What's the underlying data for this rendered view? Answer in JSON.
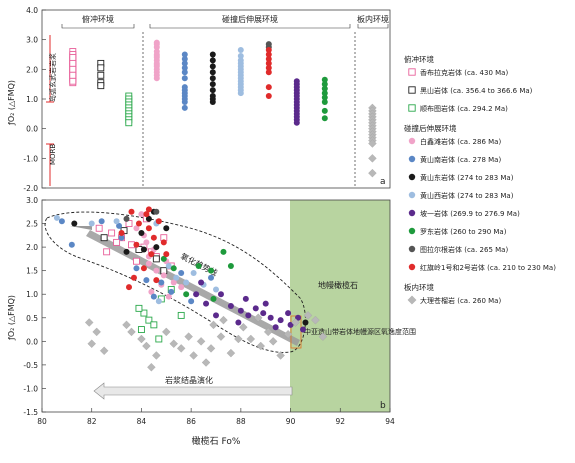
{
  "chart_data": [
    {
      "panel": "a",
      "type": "scatter",
      "ylabel": "ƒO₂ (△FMQ)",
      "ylim": [
        -2,
        4
      ],
      "yticks": [
        "-2.0",
        "-1.0",
        "0.0",
        "1.0",
        "2.0",
        "3.0",
        "4.0"
      ],
      "section_titles": [
        "俯冲环境",
        "碰撞后伸展环境",
        "板内环境"
      ],
      "arc_label": "岛弧玄武岩岩浆",
      "morb_label": "MORB",
      "series": [
        {
          "name": "香布拉克岩体 (ca. 430 Ma)",
          "marker": "square-open",
          "color": "#e8609a",
          "x": 0.6,
          "values": [
            2.6,
            2.45,
            2.35,
            2.25,
            2.15,
            2.05,
            1.95,
            1.85,
            1.75,
            1.65,
            1.55,
            2.5,
            2.3,
            2.1,
            1.9,
            1.7,
            1.6,
            2.4,
            2.2,
            2.0,
            1.8
          ]
        },
        {
          "name": "黑山岩体 (ca. 356.4 to 366.6 Ma)",
          "marker": "square-open",
          "color": "#222222",
          "x": 1.6,
          "values": [
            2.2,
            2.05,
            1.8,
            1.55,
            1.45
          ]
        },
        {
          "name": "顺布图岩体 (ca. 294.2 Ma)",
          "marker": "square-open",
          "color": "#2aa84a",
          "x": 2.6,
          "values": [
            1.1,
            1.0,
            0.9,
            0.8,
            0.7,
            0.6,
            0.5,
            0.4,
            0.3,
            0.2
          ]
        },
        {
          "name": "白鑫滩岩体 (ca. 286 Ma)",
          "marker": "circle",
          "color": "#f0a3c8",
          "x": 3.6,
          "values": [
            2.9,
            2.75,
            2.6,
            2.5,
            2.4,
            2.3,
            2.2,
            2.1,
            2.0,
            1.9,
            1.8,
            1.7,
            2.85,
            2.45,
            2.15
          ]
        },
        {
          "name": "黄山南岩体 (ca. 278 Ma)",
          "marker": "circle",
          "color": "#5b87c5",
          "x": 4.6,
          "values": [
            2.5,
            2.35,
            2.2,
            2.05,
            1.9,
            1.7,
            1.4,
            1.3,
            1.2,
            1.1,
            1.0,
            0.9,
            0.7
          ]
        },
        {
          "name": "黄山东岩体 (274 to 283 Ma)",
          "marker": "circle",
          "color": "#1a1a1a",
          "x": 5.6,
          "values": [
            2.5,
            2.3,
            2.1,
            1.9,
            1.7,
            1.5,
            1.3,
            1.1,
            1.0,
            0.9
          ]
        },
        {
          "name": "黄山西岩体 (274 to 283 Ma)",
          "marker": "circle",
          "color": "#9ebde0",
          "x": 6.6,
          "values": [
            2.65,
            2.45,
            2.3,
            2.2,
            2.1,
            2.0,
            1.9,
            1.8,
            1.7,
            1.6,
            1.5,
            1.4,
            1.3,
            1.2
          ]
        },
        {
          "name": "坡一岩体 (269.9 to 276.9 Ma)",
          "marker": "circle",
          "color": "#5b2a8c",
          "x": 8.6,
          "values": [
            1.6,
            1.5,
            1.4,
            1.3,
            1.2,
            1.1,
            1.0,
            0.9,
            0.8,
            0.7,
            0.6,
            0.5,
            0.4,
            0.3,
            0.2
          ]
        },
        {
          "name": "罗东岩体 (260 to 290 Ma)",
          "marker": "circle",
          "color": "#1e9a3c",
          "x": 9.6,
          "values": [
            1.65,
            1.5,
            1.35,
            1.2,
            1.05,
            0.9,
            0.6,
            0.35
          ]
        },
        {
          "name": "图拉尔根岩体 (ca. 265 Ma)",
          "marker": "circle",
          "color": "#555555",
          "x": 7.6,
          "values": [
            2.85,
            2.75
          ]
        },
        {
          "name": "红旗岭1号和2号岩体 (ca. 210 to 230 Ma)",
          "marker": "circle",
          "color": "#e02b2b",
          "x": 7.6,
          "values": [
            2.65,
            2.5,
            2.35,
            2.2,
            2.05,
            1.9,
            1.4,
            1.1
          ]
        },
        {
          "name": "大理苍榴岩 (ca. 260 Ma)",
          "marker": "diamond",
          "color": "#b8b8b8",
          "x": 11.3,
          "values": [
            0.7,
            0.6,
            0.5,
            0.4,
            0.3,
            0.2,
            0.1,
            0.0,
            -0.1,
            -0.2,
            -0.3,
            -0.4,
            -0.5,
            -1.0,
            -1.5
          ]
        }
      ]
    },
    {
      "panel": "b",
      "type": "scatter",
      "xlabel": "橄榄石 Fo%",
      "ylabel": "ƒO₂ (△FMQ)",
      "xlim": [
        80,
        94
      ],
      "ylim": [
        -1.5,
        3.0
      ],
      "xticks": [
        "80",
        "82",
        "84",
        "86",
        "88",
        "90",
        "92",
        "94"
      ],
      "yticks": [
        "-1.5",
        "-1.0",
        "-0.5",
        "0.0",
        "0.5",
        "1.0",
        "1.5",
        "2.0",
        "2.5",
        "3.0"
      ],
      "annotations": [
        "氧化趋势线",
        "地幔橄榄石",
        "中亚造山带岩体地幔源区氧逸度范围",
        "岩浆结晶演化"
      ],
      "series": [
        {
          "name": "香布拉克岩体 (ca. 430 Ma)",
          "marker": "square-open",
          "color": "#e8609a",
          "points": [
            [
              82.3,
              2.4
            ],
            [
              82.8,
              2.3
            ],
            [
              83.2,
              2.2
            ],
            [
              83.6,
              2.05
            ],
            [
              84.1,
              2.0
            ],
            [
              84.4,
              1.9
            ],
            [
              83.5,
              2.5
            ],
            [
              83.0,
              2.1
            ],
            [
              84.6,
              1.8
            ],
            [
              83.8,
              1.7
            ],
            [
              82.6,
              1.9
            ],
            [
              84.9,
              2.2
            ],
            [
              85.2,
              1.6
            ],
            [
              84.2,
              2.6
            ]
          ]
        },
        {
          "name": "黑山岩体 (ca. 356.4 to 366.6 Ma)",
          "marker": "square-open",
          "color": "#222222",
          "points": [
            [
              82.5,
              2.2
            ],
            [
              83.3,
              2.35
            ],
            [
              83.9,
              1.95
            ],
            [
              84.6,
              1.75
            ],
            [
              84.9,
              1.5
            ]
          ]
        },
        {
          "name": "顺布图岩体 (ca. 294.2 Ma)",
          "marker": "square-open",
          "color": "#2aa84a",
          "points": [
            [
              84.1,
              0.6
            ],
            [
              84.3,
              0.45
            ],
            [
              84.5,
              0.35
            ],
            [
              84.0,
              0.25
            ],
            [
              84.8,
              0.9
            ],
            [
              85.2,
              1.1
            ],
            [
              85.6,
              0.55
            ],
            [
              84.7,
              0.05
            ],
            [
              83.9,
              0.7
            ]
          ]
        },
        {
          "name": "白鑫滩岩体 (ca. 286 Ma)",
          "marker": "circle",
          "color": "#f0a3c8",
          "points": [
            [
              83.8,
              2.4
            ],
            [
              84.1,
              2.25
            ],
            [
              84.2,
              2.1
            ],
            [
              84.5,
              1.95
            ],
            [
              84.3,
              1.65
            ],
            [
              84.6,
              1.5
            ],
            [
              84.9,
              1.4
            ],
            [
              84.8,
              1.2
            ],
            [
              85.3,
              1.25
            ],
            [
              85.6,
              1.15
            ],
            [
              84.4,
              1.05
            ],
            [
              85.1,
              0.95
            ],
            [
              84.3,
              1.8
            ],
            [
              85.0,
              1.7
            ],
            [
              84.0,
              2.7
            ]
          ]
        },
        {
          "name": "黄山南岩体 (ca. 278 Ma)",
          "marker": "circle",
          "color": "#5b87c5",
          "points": [
            [
              80.8,
              2.55
            ],
            [
              81.2,
              2.05
            ],
            [
              82.4,
              2.55
            ],
            [
              83.1,
              2.45
            ],
            [
              83.2,
              2.2
            ],
            [
              83.8,
              1.55
            ],
            [
              84.2,
              1.3
            ],
            [
              84.8,
              1.25
            ],
            [
              85.2,
              1.05
            ],
            [
              84.5,
              0.95
            ],
            [
              85.6,
              1.45
            ],
            [
              86.8,
              1.35
            ],
            [
              86.0,
              0.85
            ]
          ]
        },
        {
          "name": "黄山东岩体 (274 to 283 Ma)",
          "marker": "circle",
          "color": "#1a1a1a",
          "points": [
            [
              81.3,
              2.5
            ],
            [
              84.5,
              2.75
            ],
            [
              84.3,
              2.6
            ],
            [
              84.0,
              2.3
            ],
            [
              85.0,
              2.4
            ],
            [
              83.4,
              1.9
            ],
            [
              84.1,
              1.95
            ],
            [
              84.6,
              2.0
            ],
            [
              90.6,
              0.4
            ]
          ]
        },
        {
          "name": "黄山西岩体 (274 to 283 Ma)",
          "marker": "circle",
          "color": "#9ebde0",
          "points": [
            [
              80.6,
              2.62
            ],
            [
              82.0,
              2.5
            ],
            [
              83.0,
              2.55
            ],
            [
              84.6,
              2.5
            ],
            [
              85.1,
              1.6
            ],
            [
              85.4,
              1.35
            ],
            [
              85.8,
              1.25
            ],
            [
              86.1,
              1.45
            ],
            [
              86.5,
              1.2
            ],
            [
              87.0,
              1.1
            ],
            [
              84.7,
              0.85
            ]
          ]
        },
        {
          "name": "坡一岩体 (269.9 to 276.9 Ma)",
          "marker": "circle",
          "color": "#5b2a8c",
          "points": [
            [
              86.4,
              1.25
            ],
            [
              87.2,
              1.0
            ],
            [
              87.6,
              0.75
            ],
            [
              88.0,
              0.65
            ],
            [
              88.3,
              0.55
            ],
            [
              88.6,
              0.7
            ],
            [
              88.9,
              0.6
            ],
            [
              89.2,
              0.5
            ],
            [
              89.6,
              0.45
            ],
            [
              89.9,
              0.6
            ],
            [
              90.0,
              0.35
            ],
            [
              90.3,
              0.5
            ],
            [
              89.4,
              0.3
            ],
            [
              88.2,
              0.9
            ],
            [
              87.9,
              0.4
            ],
            [
              86.6,
              0.8
            ],
            [
              87.0,
              0.55
            ],
            [
              86.2,
              1.0
            ],
            [
              89.0,
              0.8
            ],
            [
              90.5,
              0.25
            ]
          ]
        },
        {
          "name": "罗东岩体 (260 to 290 Ma)",
          "marker": "circle",
          "color": "#1e9a3c",
          "points": [
            [
              84.9,
              1.75
            ],
            [
              85.3,
              1.55
            ],
            [
              86.3,
              1.6
            ],
            [
              86.8,
              1.5
            ],
            [
              87.3,
              1.9
            ],
            [
              87.6,
              1.6
            ],
            [
              86.9,
              0.9
            ],
            [
              85.8,
              1.0
            ]
          ]
        },
        {
          "name": "图拉尔根岩体 (ca. 265 Ma)",
          "marker": "circle",
          "color": "#555555",
          "points": [
            [
              84.6,
              2.75
            ],
            [
              83.4,
              2.6
            ]
          ]
        },
        {
          "name": "红旗岭1号和2号岩体 (ca. 210 to 230 Ma)",
          "marker": "circle",
          "color": "#e02b2b",
          "points": [
            [
              83.6,
              2.75
            ],
            [
              84.2,
              2.7
            ],
            [
              83.9,
              2.5
            ],
            [
              84.3,
              2.4
            ],
            [
              84.7,
              2.55
            ],
            [
              84.9,
              2.1
            ],
            [
              83.8,
              2.05
            ],
            [
              84.4,
              1.85
            ],
            [
              84.1,
              1.55
            ],
            [
              83.7,
              1.35
            ],
            [
              83.5,
              1.15
            ],
            [
              84.6,
              1.3
            ],
            [
              83.2,
              2.3
            ],
            [
              84.3,
              2.8
            ],
            [
              84.5,
              2.2
            ],
            [
              85.0,
              1.85
            ]
          ]
        },
        {
          "name": "大理苍榴岩 (ca. 260 Ma)",
          "marker": "diamond",
          "color": "#b8b8b8",
          "points": [
            [
              81.9,
              0.4
            ],
            [
              82.2,
              0.2
            ],
            [
              82.0,
              -0.05
            ],
            [
              82.5,
              -0.2
            ],
            [
              83.4,
              0.35
            ],
            [
              83.6,
              0.2
            ],
            [
              84.0,
              0.05
            ],
            [
              84.2,
              -0.1
            ],
            [
              84.6,
              -0.3
            ],
            [
              84.4,
              -0.55
            ],
            [
              85.0,
              0.2
            ],
            [
              85.3,
              -0.05
            ],
            [
              85.6,
              -0.15
            ],
            [
              85.9,
              0.1
            ],
            [
              86.1,
              -0.3
            ],
            [
              86.4,
              0.0
            ],
            [
              86.6,
              -0.45
            ],
            [
              86.8,
              -0.15
            ],
            [
              87.2,
              0.1
            ],
            [
              87.6,
              -0.25
            ],
            [
              87.9,
              0.05
            ],
            [
              88.1,
              0.3
            ],
            [
              88.4,
              0.05
            ],
            [
              88.8,
              -0.1
            ],
            [
              89.1,
              0.2
            ],
            [
              89.3,
              0.0
            ],
            [
              89.6,
              -0.3
            ],
            [
              89.9,
              0.15
            ],
            [
              90.2,
              0.4
            ],
            [
              90.7,
              0.55
            ],
            [
              91.0,
              0.45
            ],
            [
              91.3,
              0.1
            ],
            [
              86.9,
              0.35
            ],
            [
              87.3,
              0.45
            ],
            [
              88.7,
              0.5
            ]
          ]
        }
      ]
    }
  ],
  "legend": {
    "groups": [
      {
        "title": "俯冲环境",
        "items": [
          0,
          1,
          2
        ]
      },
      {
        "title": "碰撞后伸展环境",
        "items": [
          3,
          4,
          5,
          6,
          7,
          8,
          9,
          10
        ]
      },
      {
        "title": "板内环境",
        "items": [
          11
        ]
      }
    ]
  },
  "panel_letters": [
    "a",
    "b"
  ]
}
